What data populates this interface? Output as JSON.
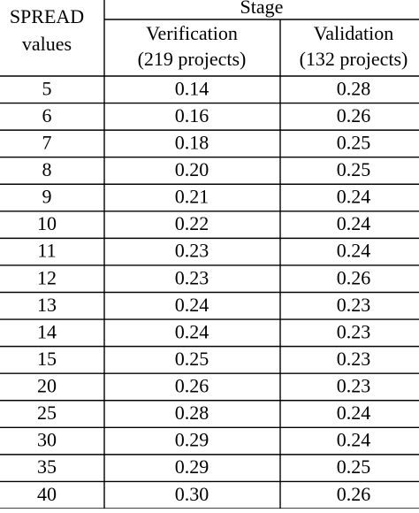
{
  "table": {
    "header": {
      "first_column": [
        "SPREAD",
        "values"
      ],
      "group": "Stage",
      "columns": [
        [
          "Verification",
          "(219 projects)"
        ],
        [
          "Validation",
          "(132 projects)"
        ]
      ]
    },
    "rows": [
      [
        "5",
        "0.14",
        "0.28"
      ],
      [
        "6",
        "0.16",
        "0.26"
      ],
      [
        "7",
        "0.18",
        "0.25"
      ],
      [
        "8",
        "0.20",
        "0.25"
      ],
      [
        "9",
        "0.21",
        "0.24"
      ],
      [
        "10",
        "0.22",
        "0.24"
      ],
      [
        "11",
        "0.23",
        "0.24"
      ],
      [
        "12",
        "0.23",
        "0.26"
      ],
      [
        "13",
        "0.24",
        "0.23"
      ],
      [
        "14",
        "0.24",
        "0.23"
      ],
      [
        "15",
        "0.25",
        "0.23"
      ],
      [
        "20",
        "0.26",
        "0.23"
      ],
      [
        "25",
        "0.28",
        "0.24"
      ],
      [
        "30",
        "0.29",
        "0.24"
      ],
      [
        "35",
        "0.29",
        "0.25"
      ],
      [
        "40",
        "0.30",
        "0.26"
      ]
    ]
  }
}
